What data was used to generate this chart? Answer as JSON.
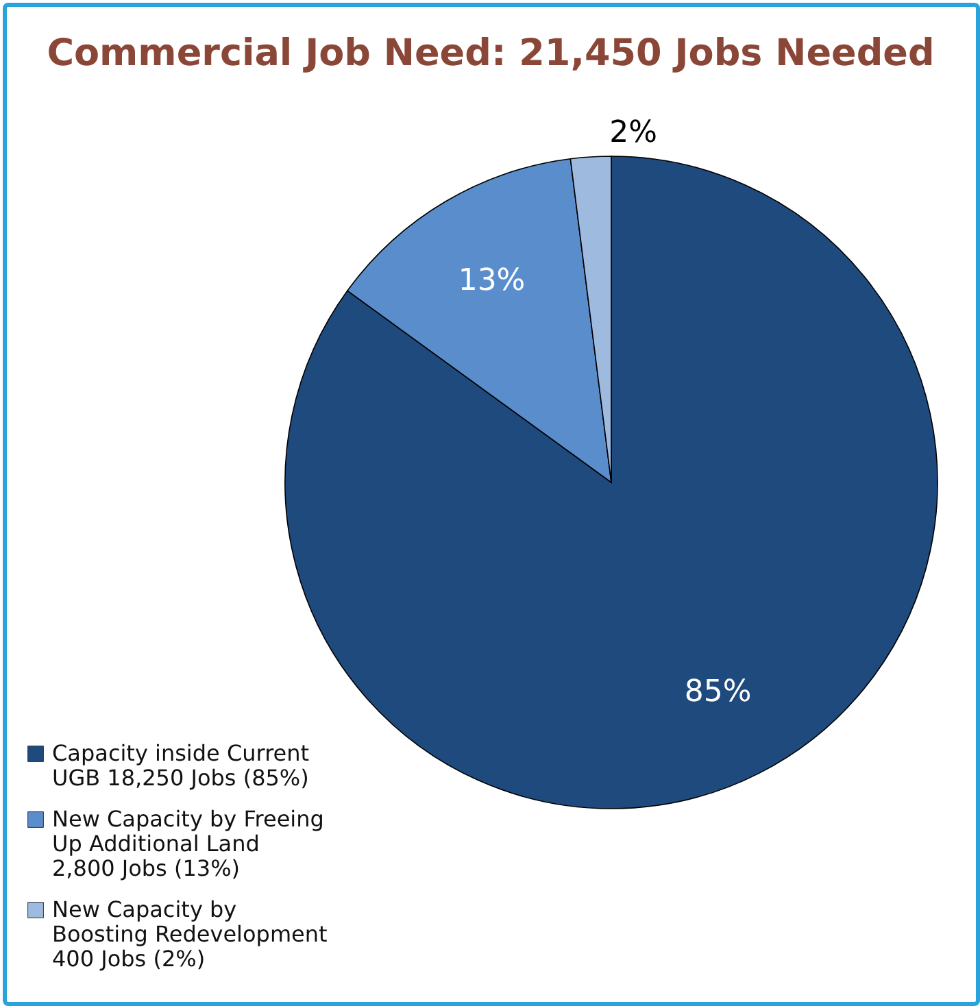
{
  "chart_data": {
    "type": "pie",
    "title": "Commercial Job Need: 21,450 Jobs Needed",
    "categories": [
      "Capacity inside Current\nUGB 18,250 Jobs (85%)",
      "New Capacity by Freeing\nUp Additional Land\n2,800 Jobs (13%)",
      "New Capacity by\nBoosting Redevelopment\n400 Jobs (2%)"
    ],
    "values": [
      85,
      13,
      2
    ],
    "colors": [
      "#1f4a7e",
      "#5a8dcb",
      "#9ebadf"
    ],
    "value_labels": [
      "85%",
      "13%",
      "2%"
    ],
    "legend": "bottom left"
  }
}
